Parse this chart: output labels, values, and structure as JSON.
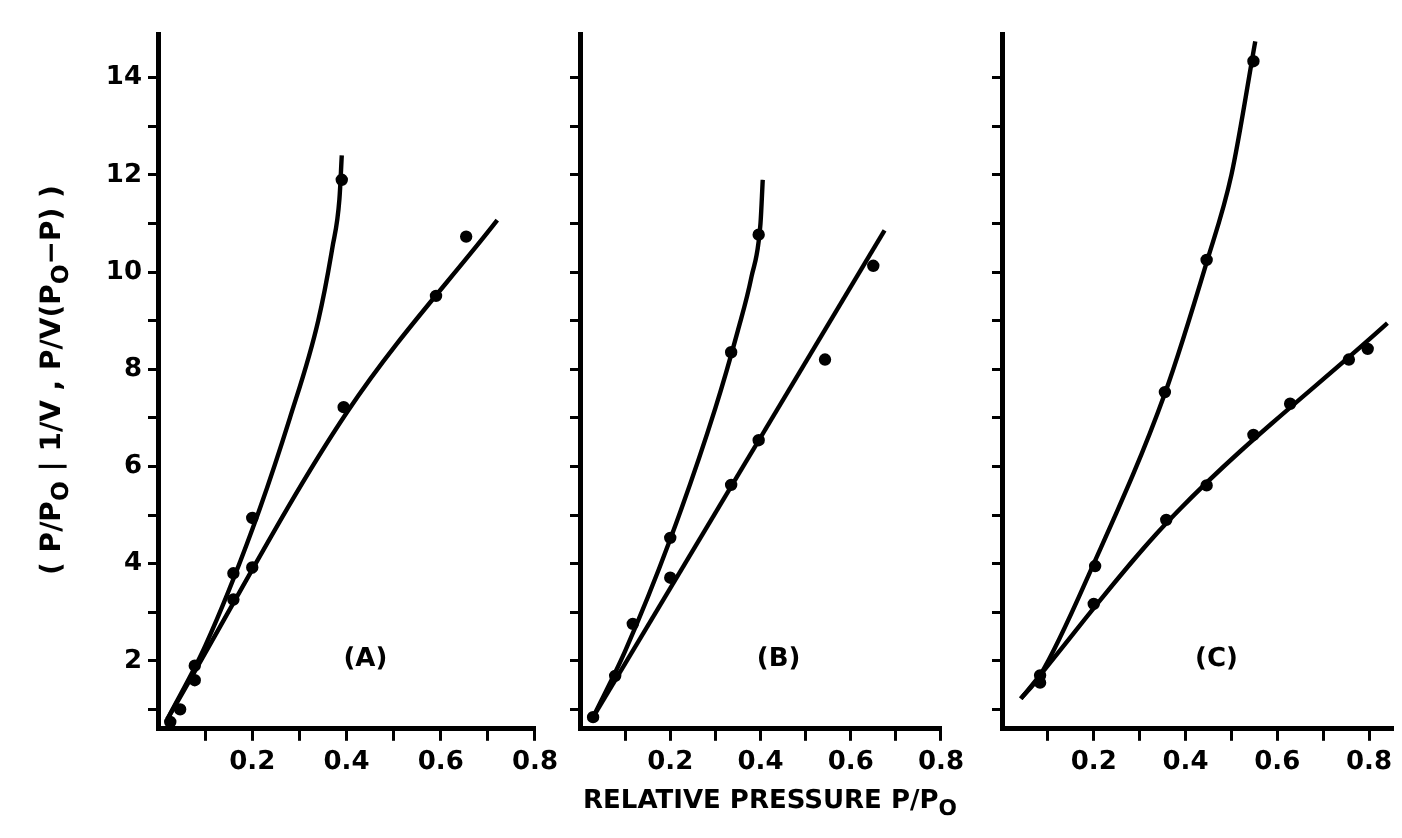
{
  "chart_data": [
    {
      "type": "scatter",
      "ylabel": "( P/P$_{O}$ | 1/V , P/V(P$_{O}$−P) )",
      "annotations": [
        "(A)"
      ],
      "xlim": [
        0,
        0.8
      ],
      "ylim": [
        0.6,
        14.9
      ],
      "xticks": [
        {
          "value": 0.1,
          "label": null
        },
        0.2,
        {
          "value": 0.3,
          "label": null
        },
        0.4,
        {
          "value": 0.5,
          "label": null
        },
        0.6,
        {
          "value": 0.7,
          "label": null
        },
        0.8
      ],
      "yticks": [
        {
          "value": 1,
          "label": null
        },
        2,
        {
          "value": 3,
          "label": null
        },
        4,
        {
          "value": 5,
          "label": null
        },
        6,
        {
          "value": 7,
          "label": null
        },
        8,
        {
          "value": 9,
          "label": null
        },
        10,
        {
          "value": 11,
          "label": null
        },
        12,
        {
          "value": 13,
          "label": null
        },
        14
      ],
      "series": [
        {
          "type": "scatter",
          "color": "#000000",
          "marker": "circle",
          "x": [
            0.026,
            0.047,
            0.078,
            0.16,
            0.2,
            0.39
          ],
          "values": [
            0.74,
            1.0,
            1.9,
            3.8,
            4.94,
            11.9
          ]
        },
        {
          "type": "scatter",
          "color": "#000000",
          "marker": "circle",
          "x": [
            0.078,
            0.16,
            0.2,
            0.394,
            0.59,
            0.654
          ],
          "values": [
            1.6,
            3.26,
            3.92,
            7.22,
            9.51,
            10.73
          ]
        },
        {
          "type": "line",
          "color": "#000000",
          "marker": "none",
          "x": [
            0.02,
            0.1,
            0.2,
            0.28,
            0.34,
            0.37,
            0.385,
            0.39
          ],
          "values": [
            0.8,
            2.3,
            4.7,
            7.0,
            9.0,
            10.5,
            11.5,
            12.4
          ]
        },
        {
          "type": "line",
          "color": "#000000",
          "marker": "none",
          "x": [
            0.02,
            0.4,
            0.72
          ],
          "values": [
            0.8,
            7.1,
            11.07
          ]
        }
      ]
    },
    {
      "type": "scatter",
      "xlabel": "RELATIVE PRESSURE P/P$_{O}$",
      "annotations": [
        "(B)"
      ],
      "tick_labels": "x",
      "xlim": [
        0,
        0.8
      ],
      "ylim": [
        0.6,
        14.9
      ],
      "xticks": [
        {
          "value": 0.1,
          "label": null
        },
        0.2,
        {
          "value": 0.3,
          "label": null
        },
        0.4,
        {
          "value": 0.5,
          "label": null
        },
        0.6,
        {
          "value": 0.7,
          "label": null
        },
        0.8
      ],
      "yticks": [
        {
          "value": 1,
          "label": null
        },
        {
          "value": 2,
          "label": null
        },
        {
          "value": 3,
          "label": null
        },
        {
          "value": 4,
          "label": null
        },
        {
          "value": 5,
          "label": null
        },
        {
          "value": 6,
          "label": null
        },
        {
          "value": 7,
          "label": null
        },
        {
          "value": 8,
          "label": null
        },
        {
          "value": 9,
          "label": null
        },
        {
          "value": 10,
          "label": null
        },
        {
          "value": 11,
          "label": null
        },
        {
          "value": 12,
          "label": null
        },
        {
          "value": 13,
          "label": null
        },
        {
          "value": 14,
          "label": null
        }
      ],
      "series": [
        {
          "type": "scatter",
          "color": "#000000",
          "marker": "circle",
          "x": [
            0.029,
            0.078,
            0.117,
            0.2,
            0.335,
            0.396
          ],
          "values": [
            0.84,
            1.69,
            2.76,
            4.53,
            8.35,
            10.77
          ]
        },
        {
          "type": "scatter",
          "color": "#000000",
          "marker": "circle",
          "x": [
            0.2,
            0.335,
            0.396,
            0.543,
            0.65
          ],
          "values": [
            3.71,
            5.62,
            6.54,
            8.2,
            10.13
          ]
        },
        {
          "type": "line",
          "color": "#000000",
          "marker": "none",
          "x": [
            0.029,
            0.1,
            0.2,
            0.3,
            0.35,
            0.38,
            0.4,
            0.405
          ],
          "values": [
            0.84,
            2.2,
            4.5,
            7.2,
            8.8,
            9.9,
            11.0,
            11.9
          ]
        },
        {
          "type": "line",
          "color": "#000000",
          "marker": "none",
          "x": [
            0.029,
            0.675
          ],
          "values": [
            0.84,
            10.86
          ]
        }
      ]
    },
    {
      "type": "scatter",
      "annotations": [
        "(C)"
      ],
      "tick_labels": "x",
      "xlim": [
        0,
        0.85
      ],
      "ylim": [
        0.6,
        14.9
      ],
      "xticks": [
        {
          "value": 0.1,
          "label": null
        },
        0.2,
        {
          "value": 0.3,
          "label": null
        },
        0.4,
        {
          "value": 0.5,
          "label": null
        },
        0.6,
        {
          "value": 0.7,
          "label": null
        },
        0.8
      ],
      "yticks": [
        {
          "value": 1,
          "label": null
        },
        {
          "value": 2,
          "label": null
        },
        {
          "value": 3,
          "label": null
        },
        {
          "value": 4,
          "label": null
        },
        {
          "value": 5,
          "label": null
        },
        {
          "value": 6,
          "label": null
        },
        {
          "value": 7,
          "label": null
        },
        {
          "value": 8,
          "label": null
        },
        {
          "value": 9,
          "label": null
        },
        {
          "value": 10,
          "label": null
        },
        {
          "value": 11,
          "label": null
        },
        {
          "value": 12,
          "label": null
        },
        {
          "value": 13,
          "label": null
        },
        {
          "value": 14,
          "label": null
        }
      ],
      "series": [
        {
          "type": "scatter",
          "color": "#000000",
          "marker": "circle",
          "x": [
            0.083,
            0.203,
            0.355,
            0.446,
            0.548
          ],
          "values": [
            1.7,
            3.95,
            7.53,
            10.25,
            14.34
          ]
        },
        {
          "type": "scatter",
          "color": "#000000",
          "marker": "circle",
          "x": [
            0.083,
            0.2,
            0.358,
            0.446,
            0.548,
            0.628,
            0.756,
            0.797
          ],
          "values": [
            1.55,
            3.17,
            4.9,
            5.61,
            6.65,
            7.29,
            8.2,
            8.42
          ]
        },
        {
          "type": "line",
          "color": "#000000",
          "marker": "none",
          "x": [
            0.041,
            0.083,
            0.2,
            0.355,
            0.446,
            0.5,
            0.552
          ],
          "values": [
            1.22,
            1.7,
            4.0,
            7.5,
            10.2,
            12.0,
            14.75
          ]
        },
        {
          "type": "line",
          "color": "#000000",
          "marker": "none",
          "x": [
            0.041,
            0.36,
            0.84
          ],
          "values": [
            1.22,
            4.85,
            8.95
          ]
        }
      ]
    }
  ]
}
